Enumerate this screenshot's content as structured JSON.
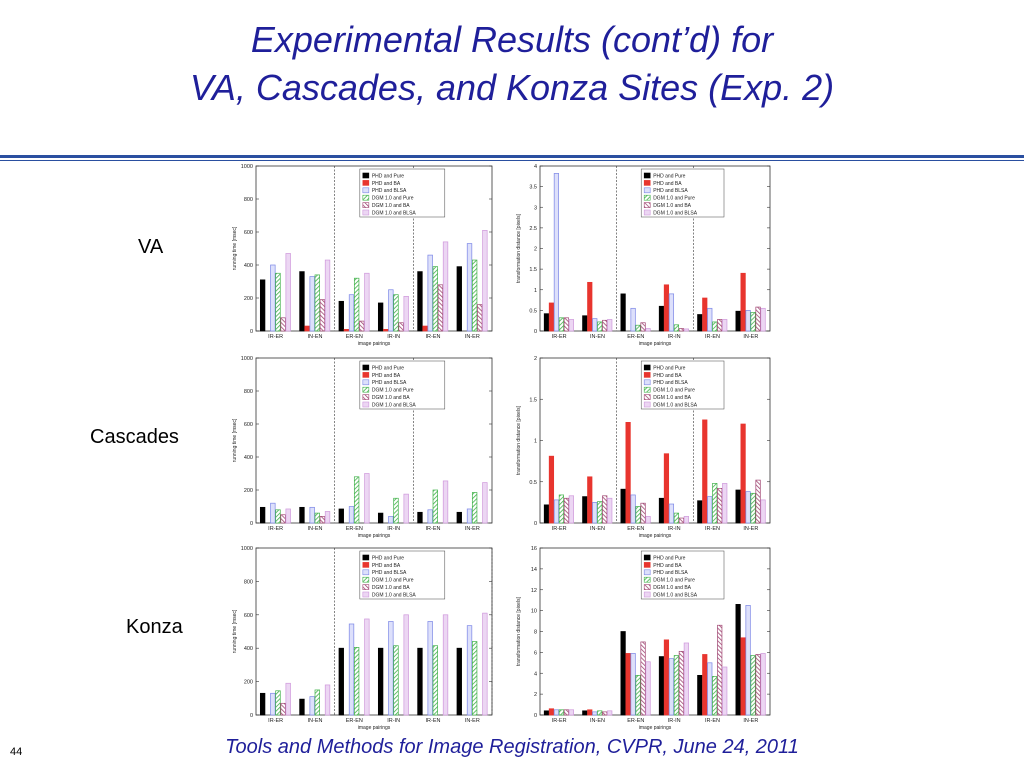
{
  "slide": {
    "title_line1": "Experimental Results (cont’d) for",
    "title_line2": "VA, Cascades, and Konza Sites (Exp. 2)",
    "footer": "Tools and Methods for Image Registration, CVPR, June 24, 2011",
    "page_number": "44",
    "row_labels": [
      "VA",
      "Cascades",
      "Konza"
    ]
  },
  "colors": {
    "title": "#1f1f9a",
    "rule": "#2a4fa0",
    "series": [
      "#000000",
      "#e8352e",
      "#7b86e6",
      "#41b24a",
      "#a04672",
      "#cf98db"
    ]
  },
  "chart_data": [
    {
      "type": "bar",
      "site": "VA",
      "metric": "time",
      "categories": [
        "IR-ER",
        "IN-EN",
        "ER-EN",
        "IR-IN",
        "IR-EN",
        "IN-ER"
      ],
      "xlabel": "image pairings",
      "ylabel": "running time [msec]",
      "ylim": [
        0,
        1000
      ],
      "yticks": [
        0,
        200,
        400,
        600,
        800,
        1000
      ],
      "dividers_after": [
        1,
        3
      ],
      "series": [
        {
          "name": "PHD and Pure",
          "values": [
            310,
            360,
            180,
            170,
            360,
            390
          ]
        },
        {
          "name": "PHD and BA",
          "values": [
            0,
            30,
            10,
            10,
            30,
            0
          ]
        },
        {
          "name": "PHD and BLSA",
          "values": [
            400,
            330,
            220,
            250,
            460,
            530
          ]
        },
        {
          "name": "DGM 1.0 and Pure",
          "values": [
            350,
            340,
            320,
            220,
            390,
            430
          ]
        },
        {
          "name": "DGM 1.0 and BA",
          "values": [
            80,
            190,
            60,
            50,
            280,
            160
          ]
        },
        {
          "name": "DGM 1.0 and BLSA",
          "values": [
            470,
            430,
            350,
            210,
            540,
            610
          ]
        }
      ]
    },
    {
      "type": "bar",
      "site": "VA",
      "metric": "distance",
      "categories": [
        "IR-ER",
        "IN-EN",
        "ER-EN",
        "IR-IN",
        "IR-EN",
        "IN-ER"
      ],
      "xlabel": "image pairings",
      "ylabel": "transformation distance [pixels]",
      "ylim": [
        0,
        4
      ],
      "yticks": [
        0,
        0.5,
        1,
        1.5,
        2,
        2.5,
        3,
        3.5,
        4
      ],
      "dividers_after": [
        1,
        3
      ],
      "series": [
        {
          "name": "PHD and Pure",
          "values": [
            0.42,
            0.37,
            0.9,
            0.6,
            0.4,
            0.48
          ]
        },
        {
          "name": "PHD and BA",
          "values": [
            0.68,
            1.18,
            0,
            1.12,
            0.8,
            1.4
          ]
        },
        {
          "name": "PHD and BLSA",
          "values": [
            3.82,
            0.3,
            0.55,
            0.9,
            0.55,
            0.5
          ]
        },
        {
          "name": "DGM 1.0 and Pure",
          "values": [
            0.32,
            0.22,
            0.14,
            0.15,
            0.22,
            0.45
          ]
        },
        {
          "name": "DGM 1.0 and BA",
          "values": [
            0.32,
            0.26,
            0.2,
            0.06,
            0.28,
            0.58
          ]
        },
        {
          "name": "DGM 1.0 and BLSA",
          "values": [
            0.28,
            0.28,
            0.06,
            0.05,
            0.28,
            0.55
          ]
        }
      ]
    },
    {
      "type": "bar",
      "site": "Cascades",
      "metric": "time",
      "categories": [
        "IR-ER",
        "IN-EN",
        "ER-EN",
        "IR-IN",
        "IR-EN",
        "IN-ER"
      ],
      "xlabel": "image pairings",
      "ylabel": "running time [msec]",
      "ylim": [
        0,
        1000
      ],
      "yticks": [
        0,
        200,
        400,
        600,
        800,
        1000
      ],
      "dividers_after": [
        1,
        3
      ],
      "series": [
        {
          "name": "PHD and Pure",
          "values": [
            95,
            95,
            85,
            60,
            65,
            65
          ]
        },
        {
          "name": "PHD and BA",
          "values": [
            0,
            0,
            0,
            0,
            0,
            0
          ]
        },
        {
          "name": "PHD and BLSA",
          "values": [
            120,
            95,
            100,
            40,
            80,
            85
          ]
        },
        {
          "name": "DGM 1.0 and Pure",
          "values": [
            80,
            60,
            280,
            150,
            200,
            185
          ]
        },
        {
          "name": "DGM 1.0 and BA",
          "values": [
            50,
            40,
            0,
            0,
            0,
            0
          ]
        },
        {
          "name": "DGM 1.0 and BLSA",
          "values": [
            85,
            70,
            300,
            175,
            255,
            245
          ]
        }
      ]
    },
    {
      "type": "bar",
      "site": "Cascades",
      "metric": "distance",
      "categories": [
        "IR-ER",
        "IN-EN",
        "ER-EN",
        "IR-IN",
        "IR-EN",
        "IN-ER"
      ],
      "xlabel": "image pairings",
      "ylabel": "transformation distance [pixels]",
      "ylim": [
        0,
        2
      ],
      "yticks": [
        0,
        0.5,
        1,
        1.5,
        2
      ],
      "dividers_after": [
        1,
        3
      ],
      "series": [
        {
          "name": "PHD and Pure",
          "values": [
            0.22,
            0.32,
            0.41,
            0.3,
            0.27,
            0.4
          ]
        },
        {
          "name": "PHD and BA",
          "values": [
            0.81,
            0.56,
            1.22,
            0.84,
            1.25,
            1.2
          ]
        },
        {
          "name": "PHD and BLSA",
          "values": [
            0.28,
            0.25,
            0.34,
            0.23,
            0.32,
            0.38
          ]
        },
        {
          "name": "DGM 1.0 and Pure",
          "values": [
            0.34,
            0.26,
            0.2,
            0.12,
            0.48,
            0.36
          ]
        },
        {
          "name": "DGM 1.0 and BA",
          "values": [
            0.3,
            0.33,
            0.24,
            0.06,
            0.42,
            0.52
          ]
        },
        {
          "name": "DGM 1.0 and BLSA",
          "values": [
            0.33,
            0.3,
            0.08,
            0.08,
            0.48,
            0.28
          ]
        }
      ]
    },
    {
      "type": "bar",
      "site": "Konza",
      "metric": "time",
      "categories": [
        "IR-ER",
        "IN-EN",
        "ER-EN",
        "IR-IN",
        "IR-EN",
        "IN-ER"
      ],
      "xlabel": "image pairings",
      "ylabel": "running time [msec]",
      "ylim": [
        0,
        1000
      ],
      "yticks": [
        0,
        200,
        400,
        600,
        800,
        1000
      ],
      "dividers_after": [
        1,
        5
      ],
      "series": [
        {
          "name": "PHD and Pure",
          "values": [
            130,
            95,
            400,
            400,
            400,
            400
          ]
        },
        {
          "name": "PHD and BA",
          "values": [
            0,
            0,
            0,
            0,
            0,
            0
          ]
        },
        {
          "name": "PHD and BLSA",
          "values": [
            130,
            110,
            545,
            560,
            560,
            535
          ]
        },
        {
          "name": "DGM 1.0 and Pure",
          "values": [
            145,
            150,
            405,
            415,
            415,
            440
          ]
        },
        {
          "name": "DGM 1.0 and BA",
          "values": [
            70,
            0,
            0,
            0,
            0,
            0
          ]
        },
        {
          "name": "DGM 1.0 and BLSA",
          "values": [
            190,
            180,
            575,
            600,
            600,
            610
          ]
        }
      ]
    },
    {
      "type": "bar",
      "site": "Konza",
      "metric": "distance",
      "categories": [
        "IR-ER",
        "IN-EN",
        "ER-EN",
        "IR-IN",
        "IR-EN",
        "IN-ER"
      ],
      "xlabel": "image pairings",
      "ylabel": "transformation distance [pixels]",
      "ylim": [
        0,
        16
      ],
      "yticks": [
        0,
        2,
        4,
        6,
        8,
        10,
        12,
        14,
        16
      ],
      "dividers_after": [],
      "series": [
        {
          "name": "PHD and Pure",
          "values": [
            0.4,
            0.4,
            8,
            5.6,
            3.8,
            10.6
          ]
        },
        {
          "name": "PHD and BA",
          "values": [
            0.6,
            0.5,
            5.9,
            7.2,
            5.8,
            7.4
          ]
        },
        {
          "name": "PHD and BLSA",
          "values": [
            0.5,
            0.3,
            5.9,
            5.4,
            5,
            10.5
          ]
        },
        {
          "name": "DGM 1.0 and Pure",
          "values": [
            0.5,
            0.4,
            3.8,
            5.7,
            3.7,
            5.7
          ]
        },
        {
          "name": "DGM 1.0 and BA",
          "values": [
            0.5,
            0.3,
            7,
            6.1,
            8.6,
            5.8
          ]
        },
        {
          "name": "DGM 1.0 and BLSA",
          "values": [
            0.5,
            0.4,
            5.1,
            6.9,
            4.6,
            5.9
          ]
        }
      ]
    }
  ]
}
